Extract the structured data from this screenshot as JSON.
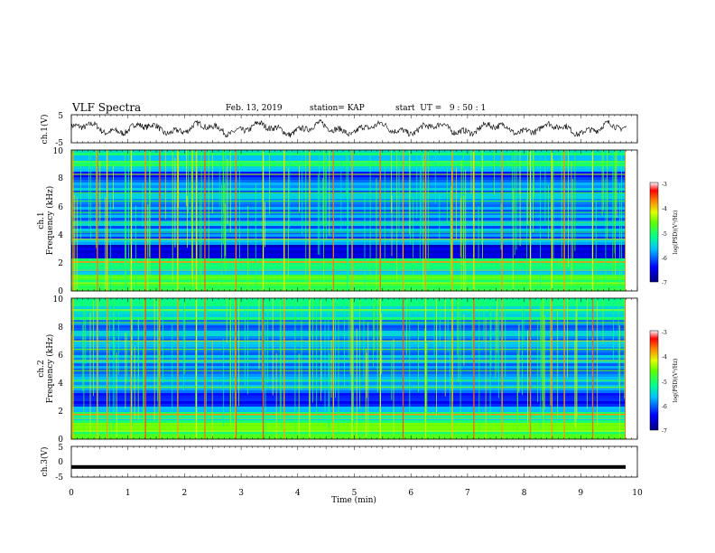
{
  "header": {
    "title": "VLF Spectra",
    "date": "Feb. 13, 2019",
    "station": "station= KAP",
    "start": "start  UT =   9 : 50 : 1"
  },
  "chart_data": [
    {
      "type": "line",
      "ylabel": "ch.1(V)",
      "ylim": [
        -5,
        5
      ],
      "yticks": [
        "5",
        "-5"
      ],
      "x_range": [
        0,
        10
      ],
      "description_values": "noisy waveform oscillating roughly between -2.5 and 2.5 V"
    },
    {
      "type": "heatmap",
      "ylabel_line1": "ch.1",
      "ylabel_line2": "Frequency (kHz)",
      "ylim": [
        0,
        10
      ],
      "yticks": [
        "0",
        "2",
        "4",
        "6",
        "8",
        "10"
      ],
      "x_range": [
        0,
        10
      ],
      "colorbar": {
        "label": "log(PSD)(V²/Hz)",
        "range": [
          -7,
          -3
        ],
        "ticks": [
          "-3",
          "-4",
          "-5",
          "-6",
          "-7"
        ]
      },
      "strong_line_khz": 2.1,
      "impulse_times_min": [
        0.02,
        0.45,
        0.62,
        1.05,
        1.3,
        1.55,
        1.87,
        2.2,
        2.35,
        2.9,
        3.38,
        3.75,
        4.2,
        4.62,
        4.95,
        5.45,
        5.85,
        6.25,
        6.72,
        7.1,
        7.6,
        8.1,
        8.48,
        8.7,
        9.2,
        9.78
      ]
    },
    {
      "type": "heatmap",
      "ylabel_line1": "ch.2",
      "ylabel_line2": "Frequency (kHz)",
      "ylim": [
        0,
        10
      ],
      "yticks": [
        "0",
        "2",
        "4",
        "6",
        "8",
        "10"
      ],
      "x_range": [
        0,
        10
      ],
      "colorbar": {
        "label": "log(PSD)(V²/Hz)",
        "range": [
          -7,
          -3
        ],
        "ticks": [
          "-3",
          "-4",
          "-5",
          "-6",
          "-7"
        ]
      },
      "strong_line_khz": 1.8,
      "impulse_times_min": [
        0.02,
        0.45,
        0.62,
        1.05,
        1.3,
        1.55,
        1.87,
        2.2,
        2.35,
        2.9,
        3.38,
        3.75,
        4.2,
        4.62,
        4.95,
        5.45,
        5.85,
        6.25,
        6.72,
        7.1,
        7.6,
        8.1,
        8.48,
        8.7,
        9.2,
        9.78
      ]
    },
    {
      "type": "line",
      "ylabel": "ch.3(V)",
      "ylim": [
        -5,
        5
      ],
      "yticks": [
        "5",
        "0",
        "-5"
      ],
      "x_range": [
        0,
        10
      ],
      "constant_value": -1.7
    }
  ],
  "xaxis": {
    "label": "Time (min)",
    "ticks": [
      "0",
      "1",
      "2",
      "3",
      "4",
      "5",
      "6",
      "7",
      "8",
      "9",
      "10"
    ]
  }
}
